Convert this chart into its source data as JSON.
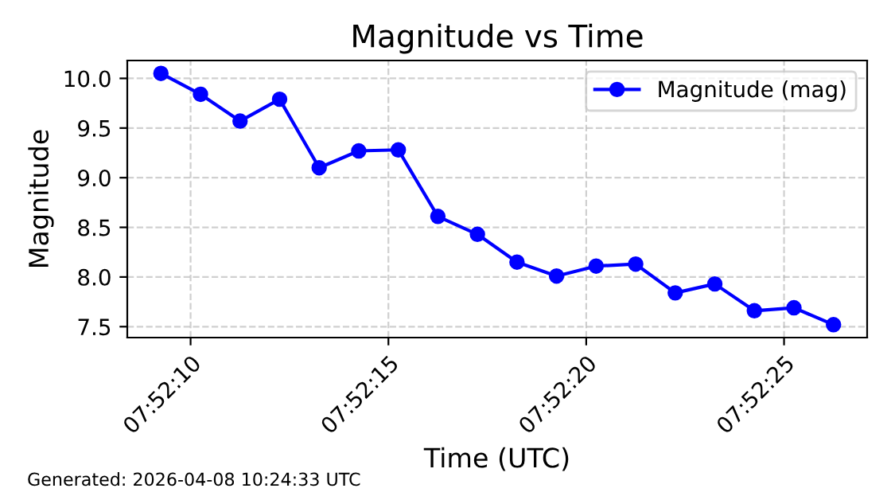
{
  "chart_data": {
    "type": "line",
    "title": "Magnitude vs Time",
    "xlabel": "Time (UTC)",
    "ylabel": "Magnitude",
    "x": [
      "2026-04-08T07:52:09.25",
      "2026-04-08T07:52:10.25",
      "2026-04-08T07:52:11.25",
      "2026-04-08T07:52:12.25",
      "2026-04-08T07:52:13.25",
      "2026-04-08T07:52:14.25",
      "2026-04-08T07:52:15.25",
      "2026-04-08T07:52:16.25",
      "2026-04-08T07:52:17.25",
      "2026-04-08T07:52:18.25",
      "2026-04-08T07:52:19.25",
      "2026-04-08T07:52:20.25",
      "2026-04-08T07:52:21.25",
      "2026-04-08T07:52:22.25",
      "2026-04-08T07:52:23.25",
      "2026-04-08T07:52:24.25",
      "2026-04-08T07:52:25.25",
      "2026-04-08T07:52:26.25"
    ],
    "series": [
      {
        "name": "Magnitude (mag)",
        "color": "#0000ff",
        "values": [
          10.05,
          9.84,
          9.57,
          9.79,
          9.1,
          9.27,
          9.28,
          8.61,
          8.43,
          8.15,
          8.01,
          8.11,
          8.13,
          7.84,
          7.93,
          7.66,
          7.69,
          7.52
        ]
      }
    ],
    "xlim": [
      "2026-04-08T07:52:08.4",
      "2026-04-08T07:52:27.1"
    ],
    "xticks": [
      {
        "value": "2026-04-08T07:52:10",
        "label": "07:52:10"
      },
      {
        "value": "2026-04-08T07:52:15",
        "label": "07:52:15"
      },
      {
        "value": "2026-04-08T07:52:20",
        "label": "07:52:20"
      },
      {
        "value": "2026-04-08T07:52:25",
        "label": "07:52:25"
      }
    ],
    "ylim": [
      7.39,
      10.18
    ],
    "yticks": [
      {
        "value": 7.5,
        "label": "7.5"
      },
      {
        "value": 8.0,
        "label": "8.0"
      },
      {
        "value": 8.5,
        "label": "8.5"
      },
      {
        "value": 9.0,
        "label": "9.0"
      },
      {
        "value": 9.5,
        "label": "9.5"
      },
      {
        "value": 10.0,
        "label": "10.0"
      }
    ],
    "grid": true,
    "legend": "top right",
    "marker": "circle",
    "line_style": "solid",
    "annotations": [
      "Generated: 2026-04-08 10:24:33 UTC"
    ]
  }
}
